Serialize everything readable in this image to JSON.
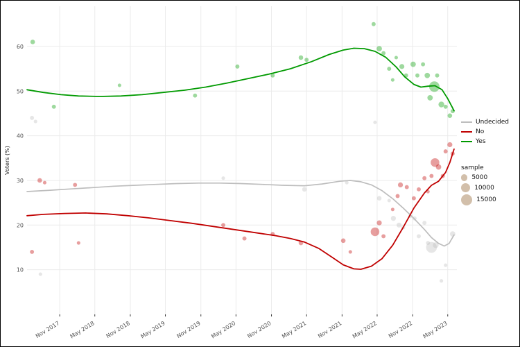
{
  "figure": {
    "ylabel": "Voters (%)",
    "background": "#ffffff",
    "grid_color": "#ebebeb",
    "tick_color": "#4d4d4d"
  },
  "legend": {
    "series_items": [
      {
        "label": "Undecided",
        "color": "#bdbdbd"
      },
      {
        "label": "No",
        "color": "#c00000"
      },
      {
        "label": "Yes",
        "color": "#009a00"
      }
    ],
    "sample": {
      "title": "sample",
      "color": "#c3a98e",
      "sizes": [
        {
          "label": "5000",
          "value": 5000
        },
        {
          "label": "10000",
          "value": 10000
        },
        {
          "label": "15000",
          "value": 15000
        }
      ]
    }
  },
  "chart_data": {
    "type": "scatter",
    "title": "",
    "xlabel": "",
    "ylabel": "Voters (%)",
    "xlim": [
      2017.37,
      2023.46
    ],
    "ylim": [
      0,
      69
    ],
    "grid": true,
    "legend_position": "right",
    "y_ticks": [
      10,
      20,
      30,
      40,
      50,
      60
    ],
    "x_ticks": [
      {
        "label": "Nov 2017",
        "x": 2017.833
      },
      {
        "label": "May 2018",
        "x": 2018.33
      },
      {
        "label": "Nov 2018",
        "x": 2018.833
      },
      {
        "label": "May 2019",
        "x": 2019.33
      },
      {
        "label": "Nov 2019",
        "x": 2019.833
      },
      {
        "label": "May 2020",
        "x": 2020.33
      },
      {
        "label": "Nov 2020",
        "x": 2020.833
      },
      {
        "label": "May 2021",
        "x": 2021.33
      },
      {
        "label": "Nov 2021",
        "x": 2021.833
      },
      {
        "label": "May 2022",
        "x": 2022.33
      },
      {
        "label": "Nov 2022",
        "x": 2022.833
      },
      {
        "label": "May 2023",
        "x": 2023.33
      }
    ],
    "point_opacity": 0.38,
    "size_scale": {
      "r_per_sqrt_sample": 0.066,
      "legend_samples": [
        5000,
        10000,
        15000
      ]
    },
    "series": [
      {
        "name": "Undecided",
        "color": "#bdbdbd",
        "line_width": 1.7,
        "trend": [
          [
            2017.37,
            27.5
          ],
          [
            2017.7,
            27.8
          ],
          [
            2018.0,
            28.1
          ],
          [
            2018.3,
            28.4
          ],
          [
            2018.6,
            28.7
          ],
          [
            2018.9,
            28.9
          ],
          [
            2019.2,
            29.1
          ],
          [
            2019.5,
            29.3
          ],
          [
            2019.8,
            29.4
          ],
          [
            2020.1,
            29.4
          ],
          [
            2020.4,
            29.3
          ],
          [
            2020.7,
            29.1
          ],
          [
            2021.0,
            28.9
          ],
          [
            2021.3,
            28.8
          ],
          [
            2021.55,
            29.2
          ],
          [
            2021.8,
            29.8
          ],
          [
            2021.95,
            30.0
          ],
          [
            2022.1,
            29.7
          ],
          [
            2022.25,
            29.0
          ],
          [
            2022.4,
            27.7
          ],
          [
            2022.55,
            25.9
          ],
          [
            2022.7,
            23.8
          ],
          [
            2022.85,
            21.5
          ],
          [
            2023.0,
            19.0
          ],
          [
            2023.1,
            17.2
          ],
          [
            2023.2,
            15.9
          ],
          [
            2023.28,
            15.3
          ],
          [
            2023.35,
            15.9
          ],
          [
            2023.42,
            17.8
          ]
        ],
        "points": [
          [
            2017.44,
            44,
            2000
          ],
          [
            2017.49,
            43.2,
            1500
          ],
          [
            2017.56,
            9,
            1500
          ],
          [
            2020.15,
            30.5,
            1500
          ],
          [
            2021.3,
            28,
            2500
          ],
          [
            2021.9,
            29.5,
            1500
          ],
          [
            2022.3,
            43,
            1500
          ],
          [
            2022.36,
            26,
            2500
          ],
          [
            2022.5,
            25.5,
            1500
          ],
          [
            2022.56,
            21.5,
            3000
          ],
          [
            2022.64,
            20,
            3000
          ],
          [
            2022.7,
            19.5,
            2000
          ],
          [
            2022.8,
            22,
            2000
          ],
          [
            2022.86,
            21.5,
            2000
          ],
          [
            2022.92,
            17.5,
            2000
          ],
          [
            2023.0,
            20.5,
            2000
          ],
          [
            2023.05,
            16,
            2000
          ],
          [
            2023.1,
            15,
            14000
          ],
          [
            2023.16,
            15.5,
            4000
          ],
          [
            2023.24,
            7.5,
            1500
          ],
          [
            2023.3,
            11,
            1500
          ],
          [
            2023.4,
            18,
            3500
          ]
        ]
      },
      {
        "name": "No",
        "color": "#c00000",
        "line_width": 1.8,
        "trend": [
          [
            2017.37,
            22.1
          ],
          [
            2017.6,
            22.4
          ],
          [
            2017.9,
            22.6
          ],
          [
            2018.2,
            22.7
          ],
          [
            2018.5,
            22.5
          ],
          [
            2018.8,
            22.1
          ],
          [
            2019.1,
            21.6
          ],
          [
            2019.4,
            21.0
          ],
          [
            2019.7,
            20.4
          ],
          [
            2020.0,
            19.7
          ],
          [
            2020.3,
            19.0
          ],
          [
            2020.6,
            18.3
          ],
          [
            2020.9,
            17.6
          ],
          [
            2021.1,
            17.0
          ],
          [
            2021.3,
            16.2
          ],
          [
            2021.5,
            14.8
          ],
          [
            2021.7,
            12.7
          ],
          [
            2021.85,
            11.1
          ],
          [
            2022.0,
            10.2
          ],
          [
            2022.1,
            10.1
          ],
          [
            2022.25,
            10.8
          ],
          [
            2022.4,
            12.5
          ],
          [
            2022.55,
            15.5
          ],
          [
            2022.7,
            19.5
          ],
          [
            2022.85,
            23.8
          ],
          [
            2023.0,
            27.2
          ],
          [
            2023.1,
            28.9
          ],
          [
            2023.2,
            29.8
          ],
          [
            2023.3,
            31.8
          ],
          [
            2023.36,
            34.0
          ],
          [
            2023.42,
            37.0
          ]
        ],
        "points": [
          [
            2017.44,
            14,
            2000
          ],
          [
            2017.55,
            30,
            2500
          ],
          [
            2017.62,
            29.5,
            1500
          ],
          [
            2018.05,
            29,
            2000
          ],
          [
            2018.1,
            16,
            1500
          ],
          [
            2020.15,
            20,
            2000
          ],
          [
            2020.45,
            17,
            2000
          ],
          [
            2020.85,
            18,
            2000
          ],
          [
            2021.25,
            16,
            2500
          ],
          [
            2021.85,
            16.5,
            2500
          ],
          [
            2021.95,
            14,
            1500
          ],
          [
            2022.3,
            18.5,
            9000
          ],
          [
            2022.36,
            20.5,
            3000
          ],
          [
            2022.42,
            17.5,
            2000
          ],
          [
            2022.55,
            23.5,
            1500
          ],
          [
            2022.62,
            26.5,
            2000
          ],
          [
            2022.66,
            29,
            3000
          ],
          [
            2022.75,
            28.5,
            2000
          ],
          [
            2022.85,
            26,
            2000
          ],
          [
            2022.92,
            28,
            2000
          ],
          [
            2023.0,
            30.5,
            2000
          ],
          [
            2023.05,
            27.5,
            1500
          ],
          [
            2023.1,
            31,
            2000
          ],
          [
            2023.15,
            34,
            9000
          ],
          [
            2023.2,
            33,
            3500
          ],
          [
            2023.26,
            31,
            2000
          ],
          [
            2023.3,
            36.5,
            2000
          ],
          [
            2023.36,
            38,
            3000
          ],
          [
            2023.4,
            36,
            2000
          ]
        ]
      },
      {
        "name": "Yes",
        "color": "#009a00",
        "line_width": 1.8,
        "trend": [
          [
            2017.37,
            50.3
          ],
          [
            2017.6,
            49.7
          ],
          [
            2017.85,
            49.2
          ],
          [
            2018.1,
            48.9
          ],
          [
            2018.4,
            48.8
          ],
          [
            2018.7,
            48.9
          ],
          [
            2019.0,
            49.2
          ],
          [
            2019.3,
            49.7
          ],
          [
            2019.6,
            50.2
          ],
          [
            2019.9,
            50.9
          ],
          [
            2020.2,
            51.8
          ],
          [
            2020.5,
            52.8
          ],
          [
            2020.8,
            53.8
          ],
          [
            2021.1,
            55.0
          ],
          [
            2021.4,
            56.6
          ],
          [
            2021.65,
            58.2
          ],
          [
            2021.85,
            59.2
          ],
          [
            2022.0,
            59.6
          ],
          [
            2022.15,
            59.5
          ],
          [
            2022.3,
            58.9
          ],
          [
            2022.45,
            57.6
          ],
          [
            2022.6,
            55.4
          ],
          [
            2022.72,
            53.2
          ],
          [
            2022.85,
            51.5
          ],
          [
            2022.95,
            50.9
          ],
          [
            2023.05,
            51.1
          ],
          [
            2023.15,
            51.2
          ],
          [
            2023.25,
            50.3
          ],
          [
            2023.33,
            48.3
          ],
          [
            2023.42,
            45.6
          ]
        ],
        "points": [
          [
            2017.45,
            61,
            2500
          ],
          [
            2017.75,
            46.5,
            2000
          ],
          [
            2018.68,
            51.3,
            1500
          ],
          [
            2019.75,
            49,
            2000
          ],
          [
            2020.35,
            55.5,
            2000
          ],
          [
            2020.85,
            53.5,
            2000
          ],
          [
            2021.25,
            57.5,
            2500
          ],
          [
            2021.33,
            57,
            2000
          ],
          [
            2022.28,
            65,
            2000
          ],
          [
            2022.36,
            59.5,
            3500
          ],
          [
            2022.42,
            58.5,
            2000
          ],
          [
            2022.5,
            55,
            2000
          ],
          [
            2022.55,
            52.5,
            1500
          ],
          [
            2022.6,
            57.5,
            1500
          ],
          [
            2022.68,
            55.5,
            3000
          ],
          [
            2022.74,
            53.5,
            2000
          ],
          [
            2022.84,
            56,
            3500
          ],
          [
            2022.9,
            53.5,
            2000
          ],
          [
            2022.98,
            56,
            2000
          ],
          [
            2023.04,
            53.5,
            3500
          ],
          [
            2023.08,
            48.5,
            3500
          ],
          [
            2023.14,
            51,
            13000
          ],
          [
            2023.18,
            53.5,
            2000
          ],
          [
            2023.24,
            47,
            4000
          ],
          [
            2023.3,
            46.5,
            2000
          ],
          [
            2023.36,
            44.5,
            2500
          ],
          [
            2023.4,
            45.5,
            2000
          ]
        ]
      }
    ]
  }
}
